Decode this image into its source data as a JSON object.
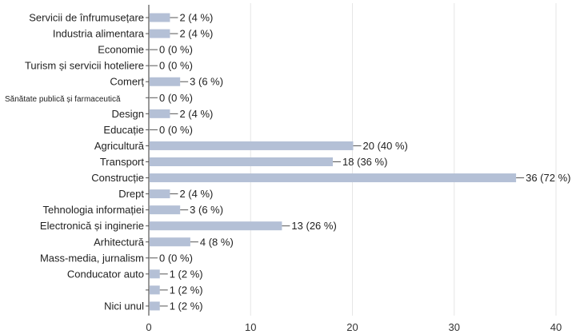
{
  "chart_data": {
    "type": "bar",
    "orientation": "horizontal",
    "categories": [
      "Servicii de înfrumusețare",
      "Industria alimentara",
      "Economie",
      "Turism și servicii hoteliere",
      "Comerț",
      "Sănătate publică și farmaceutică",
      "Design",
      "Educație",
      "Agricultură",
      "Transport",
      "Construcție",
      "Drept",
      "Tehnologia informației",
      "Electronică și inginerie",
      "Arhitectură",
      "Mass-media, jurnalism",
      "Conducator auto",
      "",
      "Nici unul"
    ],
    "values": [
      2,
      2,
      0,
      0,
      3,
      0,
      2,
      0,
      20,
      18,
      36,
      2,
      3,
      13,
      4,
      0,
      1,
      1,
      1
    ],
    "value_labels": [
      "2 (4 %)",
      "2 (4 %)",
      "0 (0 %)",
      "0 (0 %)",
      "3 (6 %)",
      "0 (0 %)",
      "2 (4 %)",
      "0 (0 %)",
      "20 (40 %)",
      "18 (36 %)",
      "36 (72 %)",
      "2 (4 %)",
      "3 (6 %)",
      "13 (26 %)",
      "4 (8 %)",
      "0 (0 %)",
      "1 (2 %)",
      "1 (2 %)",
      "1 (2 %)"
    ],
    "xlim": [
      0,
      40
    ],
    "xticks": [
      "0",
      "10",
      "20",
      "30",
      "40"
    ],
    "grid": true,
    "color": "#b4c0d6"
  }
}
